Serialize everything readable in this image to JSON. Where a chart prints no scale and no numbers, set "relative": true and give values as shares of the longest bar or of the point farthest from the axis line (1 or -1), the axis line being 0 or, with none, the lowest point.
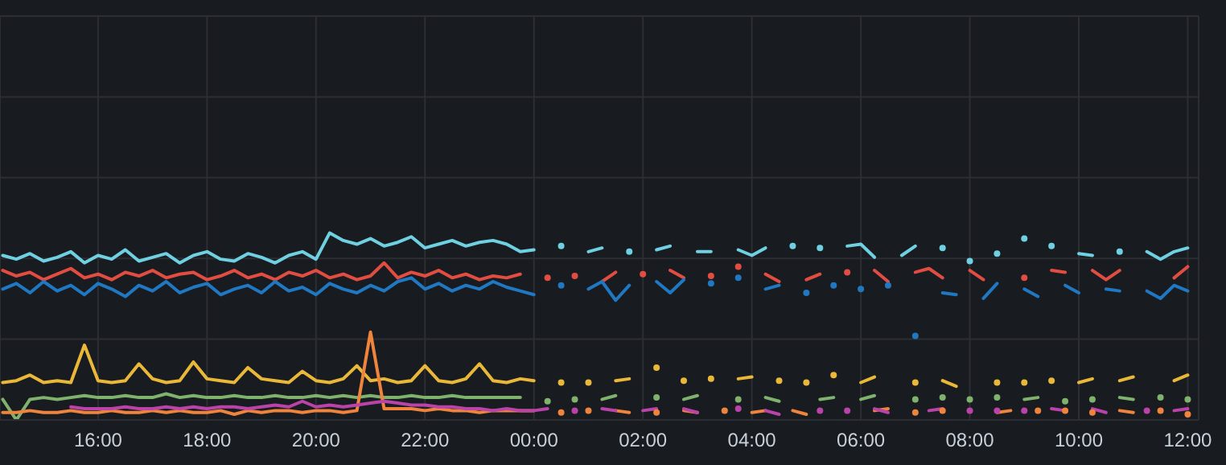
{
  "chart_data": {
    "type": "line",
    "relative": true,
    "grid": true,
    "x": [
      "--01-01T14:15",
      "--01-01T14:30",
      "--01-01T14:45",
      "--01-01T15:00",
      "--01-01T15:15",
      "--01-01T15:30",
      "--01-01T15:45",
      "--01-01T16:00",
      "--01-01T16:15",
      "--01-01T16:30",
      "--01-01T16:45",
      "--01-01T17:00",
      "--01-01T17:15",
      "--01-01T17:30",
      "--01-01T17:45",
      "--01-01T18:00",
      "--01-01T18:15",
      "--01-01T18:30",
      "--01-01T18:45",
      "--01-01T19:00",
      "--01-01T19:15",
      "--01-01T19:30",
      "--01-01T19:45",
      "--01-01T20:00",
      "--01-01T20:15",
      "--01-01T20:30",
      "--01-01T20:45",
      "--01-01T21:00",
      "--01-01T21:15",
      "--01-01T21:30",
      "--01-01T21:45",
      "--01-01T22:00",
      "--01-01T22:15",
      "--01-01T22:30",
      "--01-01T22:45",
      "--01-01T23:00",
      "--01-01T23:15",
      "--01-01T23:30",
      "--01-01T23:45",
      "--01-02T00:00",
      "--01-02T00:15",
      "--01-02T00:30",
      "--01-02T00:45",
      "--01-02T01:00",
      "--01-02T01:15",
      "--01-02T01:30",
      "--01-02T01:45",
      "--01-02T02:00",
      "--01-02T02:15",
      "--01-02T02:30",
      "--01-02T02:45",
      "--01-02T03:00",
      "--01-02T03:15",
      "--01-02T03:30",
      "--01-02T03:45",
      "--01-02T04:00",
      "--01-02T04:15",
      "--01-02T04:30",
      "--01-02T04:45",
      "--01-02T05:00",
      "--01-02T05:15",
      "--01-02T05:30",
      "--01-02T05:45",
      "--01-02T06:00",
      "--01-02T06:15",
      "--01-02T06:30",
      "--01-02T06:45",
      "--01-02T07:00",
      "--01-02T07:15",
      "--01-02T07:30",
      "--01-02T07:45",
      "--01-02T08:00",
      "--01-02T08:15",
      "--01-02T08:30",
      "--01-02T08:45",
      "--01-02T09:00",
      "--01-02T09:15",
      "--01-02T09:30",
      "--01-02T09:45",
      "--01-02T10:00",
      "--01-02T10:15",
      "--01-02T10:30",
      "--01-02T10:45",
      "--01-02T11:00",
      "--01-02T11:15",
      "--01-02T11:30",
      "--01-02T11:45",
      "--01-02T12:00"
    ],
    "xlim": [
      "--01-01T14:12",
      "--01-02T12:12"
    ],
    "xticks": [
      {
        "value": "--01-01T16:00",
        "label": "16:00"
      },
      {
        "value": "--01-01T18:00",
        "label": "18:00"
      },
      {
        "value": "--01-01T20:00",
        "label": "20:00"
      },
      {
        "value": "--01-01T22:00",
        "label": "22:00"
      },
      {
        "value": "--01-02T00:00",
        "label": "00:00"
      },
      {
        "value": "--01-02T02:00",
        "label": "02:00"
      },
      {
        "value": "--01-02T04:00",
        "label": "04:00"
      },
      {
        "value": "--01-02T06:00",
        "label": "06:00"
      },
      {
        "value": "--01-02T08:00",
        "label": "08:00"
      },
      {
        "value": "--01-02T10:00",
        "label": "10:00"
      },
      {
        "value": "--01-02T12:00",
        "label": "12:00"
      }
    ],
    "series": [
      {
        "color": "#6ed0e0",
        "values": [
          0.88,
          0.86,
          0.89,
          0.85,
          0.87,
          0.9,
          0.84,
          0.88,
          0.86,
          0.91,
          0.85,
          0.87,
          0.89,
          0.84,
          0.88,
          0.9,
          0.86,
          0.85,
          0.89,
          0.87,
          0.84,
          0.88,
          0.9,
          0.86,
          1.0,
          0.96,
          0.94,
          0.97,
          0.93,
          0.95,
          0.98,
          0.92,
          0.94,
          0.96,
          0.93,
          0.95,
          0.96,
          0.94,
          0.9,
          0.91,
          null,
          0.93,
          null,
          0.9,
          0.92,
          null,
          0.9,
          null,
          0.91,
          0.93,
          null,
          0.9,
          0.9,
          null,
          0.91,
          0.88,
          0.92,
          null,
          0.93,
          null,
          0.92,
          null,
          0.93,
          0.94,
          0.87,
          null,
          0.88,
          0.93,
          null,
          0.92,
          null,
          0.85,
          null,
          0.89,
          null,
          0.97,
          null,
          0.93,
          null,
          0.89,
          0.88,
          null,
          0.9,
          null,
          0.9,
          0.86,
          0.9,
          0.92
        ]
      },
      {
        "color": "#e24d42",
        "values": [
          0.8,
          0.77,
          0.79,
          0.75,
          0.78,
          0.81,
          0.76,
          0.78,
          0.75,
          0.79,
          0.77,
          0.8,
          0.76,
          0.78,
          0.79,
          0.75,
          0.77,
          0.8,
          0.76,
          0.78,
          0.75,
          0.79,
          0.77,
          0.8,
          0.76,
          0.78,
          0.75,
          0.77,
          0.84,
          0.76,
          0.79,
          0.77,
          0.8,
          0.76,
          0.78,
          0.75,
          0.77,
          0.76,
          0.78,
          null,
          0.76,
          null,
          0.77,
          null,
          0.74,
          0.79,
          null,
          0.78,
          null,
          0.8,
          0.76,
          null,
          0.77,
          null,
          0.82,
          null,
          0.78,
          0.74,
          null,
          0.75,
          0.78,
          null,
          0.79,
          null,
          0.8,
          0.74,
          null,
          0.79,
          0.81,
          0.76,
          null,
          0.8,
          0.75,
          null,
          null,
          0.76,
          null,
          0.8,
          0.79,
          null,
          0.8,
          0.75,
          0.8,
          null,
          null,
          null,
          0.76,
          0.82
        ]
      },
      {
        "color": "#1f78c1",
        "values": [
          0.7,
          0.73,
          0.68,
          0.74,
          0.69,
          0.72,
          0.67,
          0.73,
          0.7,
          0.66,
          0.72,
          0.69,
          0.74,
          0.68,
          0.71,
          0.73,
          0.67,
          0.7,
          0.72,
          0.68,
          0.74,
          0.69,
          0.71,
          0.67,
          0.73,
          0.7,
          0.68,
          0.72,
          0.69,
          0.74,
          0.76,
          0.7,
          0.73,
          0.69,
          0.72,
          0.7,
          0.74,
          0.71,
          0.69,
          0.67,
          null,
          0.72,
          null,
          0.7,
          0.74,
          0.64,
          0.72,
          null,
          0.74,
          0.68,
          0.75,
          null,
          0.73,
          null,
          0.76,
          null,
          0.7,
          0.72,
          null,
          0.68,
          null,
          0.72,
          null,
          0.7,
          null,
          0.72,
          null,
          0.45,
          null,
          0.68,
          0.67,
          null,
          0.65,
          0.73,
          null,
          0.7,
          0.66,
          null,
          0.72,
          0.68,
          null,
          0.7,
          0.69,
          null,
          0.69,
          0.65,
          0.72,
          0.69
        ]
      },
      {
        "color": "#eab839",
        "values": [
          0.2,
          0.21,
          0.24,
          0.2,
          0.21,
          0.2,
          0.4,
          0.21,
          0.2,
          0.21,
          0.3,
          0.22,
          0.2,
          0.21,
          0.31,
          0.22,
          0.21,
          0.2,
          0.28,
          0.22,
          0.21,
          0.2,
          0.26,
          0.21,
          0.2,
          0.22,
          0.29,
          0.21,
          0.22,
          0.2,
          0.21,
          0.29,
          0.21,
          0.2,
          0.22,
          0.3,
          0.21,
          0.2,
          0.22,
          0.21,
          null,
          0.2,
          null,
          0.2,
          null,
          0.21,
          0.22,
          null,
          0.28,
          null,
          0.21,
          null,
          0.22,
          null,
          0.22,
          0.23,
          null,
          0.21,
          null,
          0.2,
          null,
          0.24,
          null,
          0.2,
          0.23,
          null,
          null,
          0.2,
          null,
          0.21,
          0.18,
          null,
          null,
          0.2,
          null,
          0.2,
          null,
          0.21,
          null,
          0.2,
          0.22,
          null,
          0.21,
          0.23,
          null,
          null,
          0.21,
          0.24
        ]
      },
      {
        "color": "#7eb26d",
        "values": [
          0.11,
          0,
          0.11,
          0.12,
          0.11,
          0.12,
          0.13,
          0.12,
          0.12,
          0.13,
          0.12,
          0.12,
          0.14,
          0.12,
          0.13,
          0.12,
          0.12,
          0.13,
          0.12,
          0.12,
          0.13,
          0.12,
          0.12,
          0.13,
          0.12,
          0.13,
          0.12,
          0.13,
          0.12,
          0.12,
          0.13,
          0.12,
          0.12,
          0.13,
          0.12,
          0.12,
          0.12,
          0.12,
          0.12,
          null,
          0.1,
          null,
          0.11,
          null,
          0.11,
          0.13,
          null,
          null,
          0.12,
          null,
          0.11,
          0.13,
          null,
          null,
          0.11,
          null,
          0.12,
          0.1,
          null,
          null,
          0.11,
          0.12,
          null,
          0.11,
          0.13,
          null,
          null,
          0.11,
          null,
          0.12,
          null,
          0.11,
          null,
          0.12,
          null,
          0.11,
          0.12,
          null,
          0.1,
          null,
          0.11,
          null,
          0.12,
          0.11,
          null,
          0.12,
          null,
          0.11
        ]
      },
      {
        "color": "#ef843c",
        "values": [
          0.04,
          0.04,
          0.05,
          0.04,
          0.04,
          0.05,
          0.04,
          0.04,
          0.05,
          0.04,
          0.04,
          0.05,
          0.04,
          0.05,
          0.04,
          0.04,
          0.05,
          0.03,
          0.05,
          0.04,
          0.05,
          0.05,
          0.04,
          0.05,
          0.05,
          0.04,
          0.05,
          0.47,
          0.06,
          0.06,
          0.06,
          0.05,
          0.06,
          0.05,
          0.05,
          0.04,
          0.05,
          0.05,
          0.05,
          0.05,
          null,
          0.04,
          null,
          0.05,
          null,
          0.05,
          0.04,
          null,
          0.04,
          null,
          0.05,
          0.04,
          null,
          0.05,
          null,
          0.04,
          0.05,
          null,
          0.05,
          0.03,
          null,
          null,
          null,
          null,
          0.05,
          0.06,
          null,
          0.04,
          null,
          0.05,
          null,
          null,
          null,
          0.04,
          0.05,
          null,
          0.05,
          null,
          0.05,
          null,
          0.04,
          null,
          0.05,
          0.04,
          null,
          0.05,
          null,
          0.03
        ]
      },
      {
        "color": "#ba43a9",
        "values": [
          null,
          null,
          null,
          null,
          null,
          0.07,
          0.06,
          0.06,
          0.06,
          0.07,
          0.06,
          0.06,
          0.07,
          0.06,
          0.07,
          0.06,
          0.07,
          0.07,
          0.06,
          0.07,
          0.08,
          0.07,
          0.1,
          0.07,
          0.08,
          0.07,
          0.08,
          0.09,
          0.1,
          0.09,
          0.08,
          0.08,
          0.07,
          0.07,
          0.06,
          0.06,
          0.05,
          0.06,
          0.05,
          0.05,
          0.06,
          null,
          0.05,
          null,
          0.06,
          0.05,
          null,
          0.05,
          0.06,
          null,
          0.06,
          0.04,
          null,
          null,
          0.06,
          null,
          0.05,
          0.03,
          null,
          null,
          0.05,
          null,
          0.05,
          null,
          0.06,
          0.04,
          null,
          null,
          0.05,
          0.06,
          null,
          0.05,
          null,
          0.05,
          null,
          0.05,
          null,
          0.06,
          0.05,
          null,
          0.06,
          0.04,
          null,
          null,
          0.05,
          null,
          0.05,
          0.06
        ]
      }
    ]
  }
}
